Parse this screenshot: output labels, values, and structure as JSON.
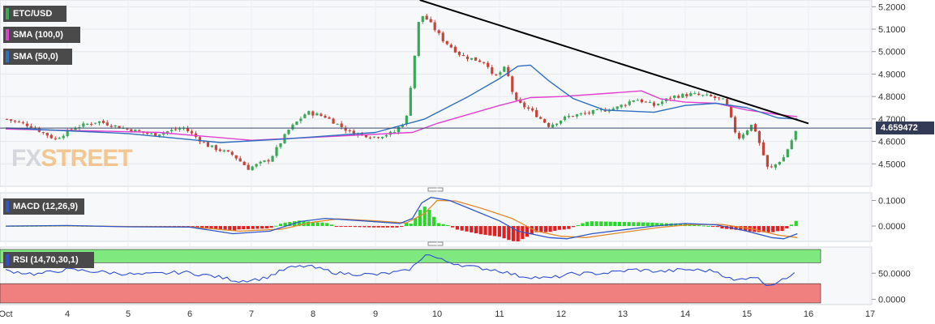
{
  "watermark": {
    "part1": "FX",
    "part2": "STREET"
  },
  "panels": {
    "price": {
      "label": "ETC/USD",
      "indicators": [
        "SMA (100,0)",
        "SMA (50,0)"
      ]
    },
    "macd": {
      "label": "MACD (12,26,9)"
    },
    "rsi": {
      "label": "RSI (14,70,30,1)"
    }
  },
  "last_price": "4.659472",
  "colors": {
    "up_candle": "#3aa858",
    "down_candle": "#c8443a",
    "sma100": "#e040d0",
    "sma50": "#2f6fbf",
    "trendline": "#000000",
    "macd_line": "#2f57c8",
    "signal_line": "#e08a2a",
    "hist_pos": "#28d828",
    "hist_neg": "#e02020",
    "rsi_line": "#2f4fd0",
    "rsi_overbought_zone": "#7fe87f",
    "rsi_oversold_zone": "#f08080"
  },
  "chart_data": [
    {
      "type": "candlestick",
      "title": "ETC/USD",
      "x_ticks": [
        "Oct",
        "4",
        "5",
        "6",
        "7",
        "8",
        "9",
        "10",
        "11",
        "12",
        "13",
        "14",
        "15",
        "16",
        "17"
      ],
      "y_ticks": [
        "4.5000",
        "4.6000",
        "4.7000",
        "4.8000",
        "4.9000",
        "5.0000",
        "5.1000",
        "5.2000"
      ],
      "ylim": [
        4.4,
        5.23
      ],
      "last_price": 4.659472,
      "close_path": [
        {
          "t": 0.0,
          "v": 4.7
        },
        {
          "t": 0.4,
          "v": 4.67
        },
        {
          "t": 0.8,
          "v": 4.61
        },
        {
          "t": 1.1,
          "v": 4.66
        },
        {
          "t": 1.5,
          "v": 4.69
        },
        {
          "t": 1.9,
          "v": 4.66
        },
        {
          "t": 2.4,
          "v": 4.63
        },
        {
          "t": 2.9,
          "v": 4.66
        },
        {
          "t": 3.3,
          "v": 4.58
        },
        {
          "t": 3.7,
          "v": 4.54
        },
        {
          "t": 3.95,
          "v": 4.48
        },
        {
          "t": 4.3,
          "v": 4.52
        },
        {
          "t": 4.6,
          "v": 4.65
        },
        {
          "t": 4.9,
          "v": 4.73
        },
        {
          "t": 5.2,
          "v": 4.71
        },
        {
          "t": 5.6,
          "v": 4.64
        },
        {
          "t": 6.0,
          "v": 4.62
        },
        {
          "t": 6.3,
          "v": 4.64
        },
        {
          "t": 6.5,
          "v": 4.7
        },
        {
          "t": 6.62,
          "v": 4.95
        },
        {
          "t": 6.72,
          "v": 5.17
        },
        {
          "t": 6.85,
          "v": 5.14
        },
        {
          "t": 7.1,
          "v": 5.05
        },
        {
          "t": 7.4,
          "v": 4.98
        },
        {
          "t": 7.8,
          "v": 4.95
        },
        {
          "t": 7.9,
          "v": 4.88
        },
        {
          "t": 8.1,
          "v": 4.93
        },
        {
          "t": 8.25,
          "v": 4.78
        },
        {
          "t": 8.5,
          "v": 4.74
        },
        {
          "t": 8.8,
          "v": 4.67
        },
        {
          "t": 9.1,
          "v": 4.71
        },
        {
          "t": 9.5,
          "v": 4.73
        },
        {
          "t": 9.9,
          "v": 4.75
        },
        {
          "t": 10.2,
          "v": 4.79
        },
        {
          "t": 10.5,
          "v": 4.76
        },
        {
          "t": 10.8,
          "v": 4.8
        },
        {
          "t": 11.1,
          "v": 4.81
        },
        {
          "t": 11.4,
          "v": 4.8
        },
        {
          "t": 11.65,
          "v": 4.78
        },
        {
          "t": 11.85,
          "v": 4.61
        },
        {
          "t": 12.1,
          "v": 4.68
        },
        {
          "t": 12.35,
          "v": 4.47
        },
        {
          "t": 12.6,
          "v": 4.53
        },
        {
          "t": 12.82,
          "v": 4.66
        }
      ],
      "sma50": [
        {
          "t": 0.0,
          "v": 4.66
        },
        {
          "t": 2.0,
          "v": 4.635
        },
        {
          "t": 3.5,
          "v": 4.595
        },
        {
          "t": 4.5,
          "v": 4.61
        },
        {
          "t": 6.0,
          "v": 4.64
        },
        {
          "t": 6.8,
          "v": 4.7
        },
        {
          "t": 7.5,
          "v": 4.8
        },
        {
          "t": 8.0,
          "v": 4.88
        },
        {
          "t": 8.3,
          "v": 4.935
        },
        {
          "t": 8.5,
          "v": 4.94
        },
        {
          "t": 8.8,
          "v": 4.87
        },
        {
          "t": 9.2,
          "v": 4.79
        },
        {
          "t": 9.7,
          "v": 4.74
        },
        {
          "t": 10.5,
          "v": 4.73
        },
        {
          "t": 11.0,
          "v": 4.76
        },
        {
          "t": 11.5,
          "v": 4.77
        },
        {
          "t": 12.0,
          "v": 4.75
        },
        {
          "t": 12.5,
          "v": 4.705
        },
        {
          "t": 12.82,
          "v": 4.7
        }
      ],
      "sma100": [
        {
          "t": 0.0,
          "v": 4.655
        },
        {
          "t": 2.5,
          "v": 4.64
        },
        {
          "t": 4.0,
          "v": 4.605
        },
        {
          "t": 5.5,
          "v": 4.625
        },
        {
          "t": 6.6,
          "v": 4.64
        },
        {
          "t": 7.0,
          "v": 4.68
        },
        {
          "t": 8.0,
          "v": 4.76
        },
        {
          "t": 8.5,
          "v": 4.795
        },
        {
          "t": 9.0,
          "v": 4.8
        },
        {
          "t": 9.8,
          "v": 4.815
        },
        {
          "t": 10.3,
          "v": 4.825
        },
        {
          "t": 10.6,
          "v": 4.79
        },
        {
          "t": 11.0,
          "v": 4.775
        },
        {
          "t": 11.5,
          "v": 4.77
        },
        {
          "t": 12.0,
          "v": 4.74
        },
        {
          "t": 12.5,
          "v": 4.72
        },
        {
          "t": 12.82,
          "v": 4.71
        }
      ],
      "trendline": [
        {
          "t": 6.72,
          "v": 5.23
        },
        {
          "t": 13.0,
          "v": 4.68
        }
      ]
    },
    {
      "type": "macd",
      "title": "MACD (12,26,9)",
      "y_ticks": [
        "0.1000",
        "0.0000"
      ],
      "ylim": [
        -0.06,
        0.13
      ],
      "macd": [
        {
          "t": 0.0,
          "v": 0.0
        },
        {
          "t": 1.0,
          "v": 0.002
        },
        {
          "t": 2.0,
          "v": -0.003
        },
        {
          "t": 3.0,
          "v": -0.004
        },
        {
          "t": 3.7,
          "v": -0.03
        },
        {
          "t": 4.3,
          "v": -0.02
        },
        {
          "t": 4.8,
          "v": 0.018
        },
        {
          "t": 5.2,
          "v": 0.03
        },
        {
          "t": 5.8,
          "v": 0.02
        },
        {
          "t": 6.4,
          "v": 0.01
        },
        {
          "t": 6.6,
          "v": 0.03
        },
        {
          "t": 6.75,
          "v": 0.09
        },
        {
          "t": 6.9,
          "v": 0.112
        },
        {
          "t": 7.2,
          "v": 0.1
        },
        {
          "t": 7.5,
          "v": 0.07
        },
        {
          "t": 8.0,
          "v": 0.02
        },
        {
          "t": 8.3,
          "v": -0.02
        },
        {
          "t": 8.8,
          "v": -0.045
        },
        {
          "t": 9.1,
          "v": -0.05
        },
        {
          "t": 9.5,
          "v": -0.03
        },
        {
          "t": 10.0,
          "v": -0.015
        },
        {
          "t": 10.5,
          "v": 0.0
        },
        {
          "t": 11.0,
          "v": 0.01
        },
        {
          "t": 11.5,
          "v": 0.005
        },
        {
          "t": 12.0,
          "v": -0.02
        },
        {
          "t": 12.4,
          "v": -0.045
        },
        {
          "t": 12.6,
          "v": -0.05
        },
        {
          "t": 12.82,
          "v": -0.03
        }
      ],
      "signal": [
        {
          "t": 0.0,
          "v": 0.0
        },
        {
          "t": 1.0,
          "v": 0.001
        },
        {
          "t": 2.0,
          "v": -0.002
        },
        {
          "t": 3.0,
          "v": -0.003
        },
        {
          "t": 3.8,
          "v": -0.02
        },
        {
          "t": 4.5,
          "v": -0.012
        },
        {
          "t": 5.0,
          "v": 0.015
        },
        {
          "t": 5.4,
          "v": 0.028
        },
        {
          "t": 6.0,
          "v": 0.02
        },
        {
          "t": 6.5,
          "v": 0.012
        },
        {
          "t": 6.8,
          "v": 0.05
        },
        {
          "t": 7.0,
          "v": 0.1
        },
        {
          "t": 7.3,
          "v": 0.098
        },
        {
          "t": 7.7,
          "v": 0.07
        },
        {
          "t": 8.2,
          "v": 0.03
        },
        {
          "t": 8.6,
          "v": -0.02
        },
        {
          "t": 9.0,
          "v": -0.04
        },
        {
          "t": 9.4,
          "v": -0.045
        },
        {
          "t": 10.0,
          "v": -0.025
        },
        {
          "t": 10.6,
          "v": -0.005
        },
        {
          "t": 11.1,
          "v": 0.006
        },
        {
          "t": 11.6,
          "v": 0.006
        },
        {
          "t": 12.1,
          "v": -0.012
        },
        {
          "t": 12.5,
          "v": -0.035
        },
        {
          "t": 12.82,
          "v": -0.045
        }
      ]
    },
    {
      "type": "line",
      "title": "RSI (14,70,30,1)",
      "y_ticks": [
        "50.0000",
        "0.0000"
      ],
      "ylim": [
        -10,
        100
      ],
      "overbought": 70,
      "oversold": 30,
      "rsi": [
        {
          "t": 0.0,
          "v": 55
        },
        {
          "t": 0.5,
          "v": 48
        },
        {
          "t": 1.0,
          "v": 57
        },
        {
          "t": 1.6,
          "v": 52
        },
        {
          "t": 2.2,
          "v": 47
        },
        {
          "t": 2.9,
          "v": 52
        },
        {
          "t": 3.4,
          "v": 44
        },
        {
          "t": 3.8,
          "v": 35
        },
        {
          "t": 4.2,
          "v": 40
        },
        {
          "t": 4.6,
          "v": 60
        },
        {
          "t": 4.9,
          "v": 64
        },
        {
          "t": 5.4,
          "v": 50
        },
        {
          "t": 6.0,
          "v": 47
        },
        {
          "t": 6.5,
          "v": 54
        },
        {
          "t": 6.7,
          "v": 70
        },
        {
          "t": 6.8,
          "v": 88
        },
        {
          "t": 7.1,
          "v": 74
        },
        {
          "t": 7.5,
          "v": 63
        },
        {
          "t": 8.0,
          "v": 55
        },
        {
          "t": 8.3,
          "v": 45
        },
        {
          "t": 8.8,
          "v": 40
        },
        {
          "t": 9.2,
          "v": 49
        },
        {
          "t": 9.7,
          "v": 50
        },
        {
          "t": 10.2,
          "v": 57
        },
        {
          "t": 10.6,
          "v": 53
        },
        {
          "t": 11.0,
          "v": 57
        },
        {
          "t": 11.5,
          "v": 54
        },
        {
          "t": 11.8,
          "v": 35
        },
        {
          "t": 12.1,
          "v": 45
        },
        {
          "t": 12.35,
          "v": 27
        },
        {
          "t": 12.6,
          "v": 37
        },
        {
          "t": 12.82,
          "v": 58
        }
      ]
    }
  ]
}
